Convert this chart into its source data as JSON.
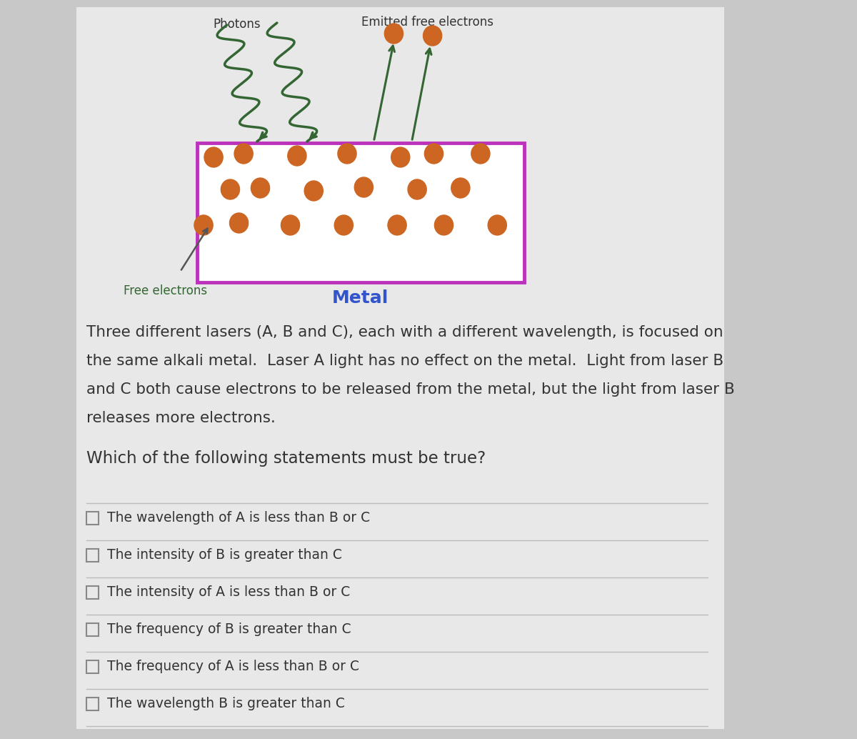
{
  "bg_outer": "#c8c8c8",
  "bg_card": "#e8e8e8",
  "metal_box_color": "#bb33bb",
  "metal_box_face": "#ffffff",
  "electron_color": "#cc6622",
  "photon_wave_color": "#336633",
  "arrow_color": "#336633",
  "free_electrons_label_color": "#336633",
  "metal_label_color": "#3355cc",
  "photons_label": "Photons",
  "emitted_label": "Emitted free electrons",
  "free_electrons_label": "Free electrons",
  "metal_label": "Metal",
  "paragraph_lines": [
    "Three different lasers (A, B and C), each with a different wavelength, is focused on",
    "the same alkali metal.  Laser A light has no effect on the metal.  Light from laser B",
    "and C both cause electrons to be released from the metal, but the light from laser B",
    "releases more electrons."
  ],
  "question": "Which of the following statements must be true?",
  "options": [
    "The wavelength of A is less than B or C",
    "The intensity of B is greater than C",
    "The intensity of A is less than B or C",
    "The frequency of B is greater than C",
    "The frequency of A is less than B or C",
    "The wavelength B is greater than C"
  ],
  "text_color": "#333333",
  "divider_color": "#bbbbbb"
}
